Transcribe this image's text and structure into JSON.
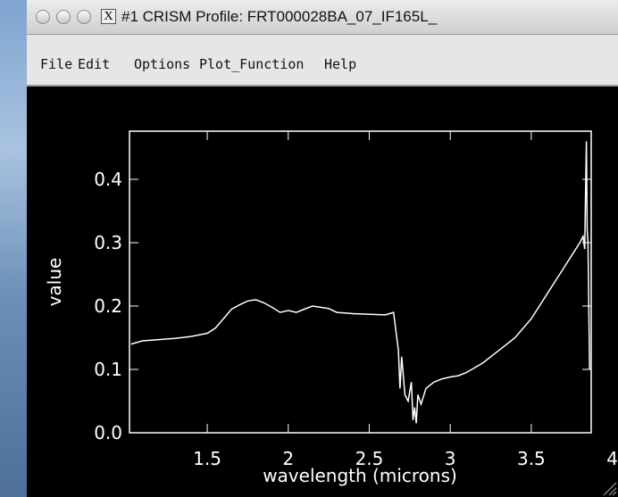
{
  "window": {
    "title": "#1 CRISM Profile: FRT000028BA_07_IF165L_",
    "menu": [
      "File",
      "Edit",
      "Options",
      "Plot_Function",
      "Help"
    ]
  },
  "chart_data": {
    "type": "line",
    "x_label": "wavelength (microns)",
    "y_label": "value",
    "x": [
      1.03,
      1.1,
      1.2,
      1.3,
      1.4,
      1.5,
      1.55,
      1.6,
      1.65,
      1.7,
      1.75,
      1.8,
      1.85,
      1.9,
      1.95,
      2.0,
      2.05,
      2.1,
      2.15,
      2.2,
      2.25,
      2.3,
      2.4,
      2.5,
      2.6,
      2.65,
      2.66,
      2.68,
      2.69,
      2.7,
      2.72,
      2.74,
      2.76,
      2.77,
      2.78,
      2.79,
      2.8,
      2.82,
      2.85,
      2.9,
      2.95,
      3.0,
      3.05,
      3.1,
      3.2,
      3.3,
      3.4,
      3.5,
      3.55,
      3.6,
      3.65,
      3.7,
      3.75,
      3.8,
      3.82,
      3.83,
      3.84,
      3.845,
      3.85,
      3.86
    ],
    "values": [
      0.14,
      0.145,
      0.147,
      0.149,
      0.152,
      0.157,
      0.165,
      0.18,
      0.195,
      0.202,
      0.208,
      0.21,
      0.205,
      0.198,
      0.19,
      0.193,
      0.19,
      0.195,
      0.2,
      0.198,
      0.196,
      0.19,
      0.188,
      0.187,
      0.186,
      0.19,
      0.17,
      0.13,
      0.07,
      0.12,
      0.06,
      0.05,
      0.08,
      0.02,
      0.04,
      0.015,
      0.06,
      0.045,
      0.07,
      0.08,
      0.085,
      0.088,
      0.09,
      0.095,
      0.11,
      0.13,
      0.15,
      0.18,
      0.2,
      0.22,
      0.24,
      0.26,
      0.28,
      0.3,
      0.31,
      0.29,
      0.46,
      0.32,
      0.3,
      0.1
    ],
    "color": "#ffffff",
    "xlim": [
      1.02,
      3.87
    ],
    "xticks": [
      1.5,
      2.0,
      2.5,
      3.0,
      3.5,
      4.0
    ],
    "ylim": [
      0,
      0.476
    ],
    "yticks": [
      {
        "value": 0,
        "label": "0.0"
      },
      0.1,
      0.2,
      0.3,
      0.4
    ]
  }
}
